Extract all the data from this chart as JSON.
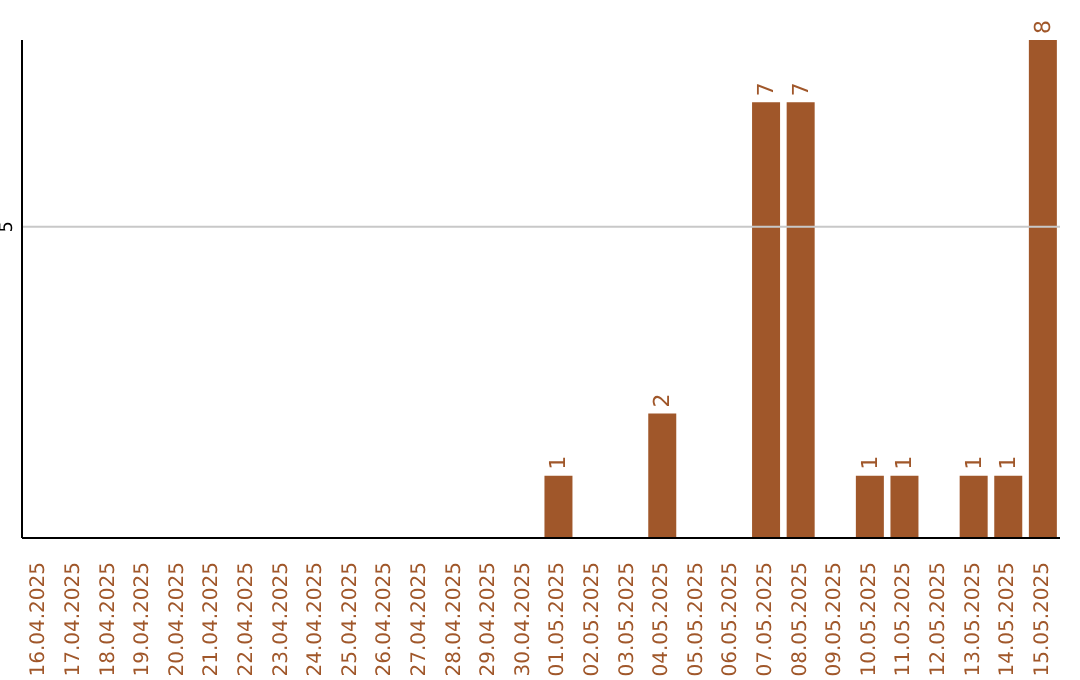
{
  "chart_data": {
    "type": "bar",
    "categories": [
      "16.04.2025",
      "17.04.2025",
      "18.04.2025",
      "19.04.2025",
      "20.04.2025",
      "21.04.2025",
      "22.04.2025",
      "23.04.2025",
      "24.04.2025",
      "25.04.2025",
      "26.04.2025",
      "27.04.2025",
      "28.04.2025",
      "29.04.2025",
      "30.04.2025",
      "01.05.2025",
      "02.05.2025",
      "03.05.2025",
      "04.05.2025",
      "05.05.2025",
      "06.05.2025",
      "07.05.2025",
      "08.05.2025",
      "09.05.2025",
      "10.05.2025",
      "11.05.2025",
      "12.05.2025",
      "13.05.2025",
      "14.05.2025",
      "15.05.2025"
    ],
    "values": [
      null,
      null,
      null,
      null,
      null,
      null,
      null,
      null,
      null,
      null,
      null,
      null,
      null,
      null,
      null,
      1,
      null,
      null,
      2,
      null,
      null,
      7,
      7,
      null,
      1,
      1,
      null,
      1,
      1,
      8
    ],
    "data_labels": true,
    "color": "#a0572a",
    "ref_lines": [
      {
        "axis": "y",
        "value": 5,
        "label": "5",
        "color": "#c8c8c8"
      }
    ]
  }
}
